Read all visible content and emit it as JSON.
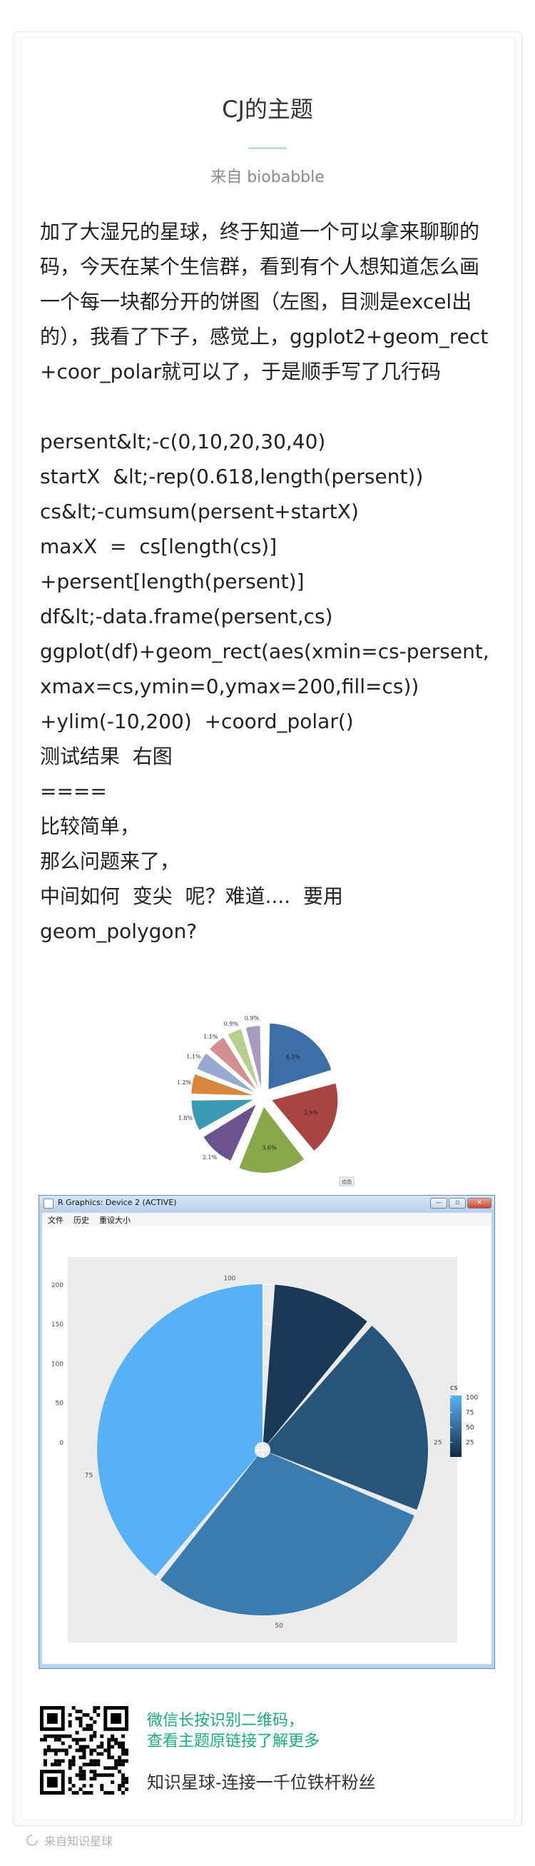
{
  "header": {
    "title": "CJ的主题",
    "subtitle": "来自 biobabble"
  },
  "article": {
    "lines": [
      "加了大湿兄的星球，终于知道一个可以拿来聊聊的码，今天在某个生信群，看到有个人想知道怎么画一个每一块都分开的饼图（左图，目测是excel出的），我看了下子，感觉上，ggplot2+geom_rect+coor_polar就可以了，于是顺手写了几行码",
      "",
      "persent&lt;-c(0,10,20,30,40)",
      "startX  &lt;-rep(0.618,length(persent))",
      "cs&lt;-cumsum(persent+startX)",
      "maxX  =  cs[length(cs)]",
      "+persent[length(persent)]",
      "df&lt;-data.frame(persent,cs)",
      "ggplot(df)+geom_rect(aes(xmin=cs-persent,xmax=cs,ymin=0,ymax=200,fill=cs))",
      "+ylim(-10,200)  +coord_polar()",
      "测试结果  右图",
      "====",
      "比较简单，",
      "那么问题来了，",
      "中间如何  变尖  呢？难道....  要用",
      "geom_polygon?"
    ]
  },
  "pie_figure": {
    "labels": [
      "4.3%",
      "3.9%",
      "3.6%",
      "2.1%",
      "1.8%",
      "1.2%",
      "1.1%",
      "1.1%",
      "0.9%",
      "0.9%"
    ],
    "colors": [
      "#3d6ea8",
      "#a94442",
      "#8aa84a",
      "#6b5390",
      "#3c9ab2",
      "#d9853b",
      "#95a9d2",
      "#d48f91",
      "#b7cf8e",
      "#a99ac0"
    ],
    "badge": "绘图"
  },
  "r_window": {
    "title": "R Graphics: Device 2 (ACTIVE)",
    "menu": [
      "文件",
      "历史",
      "重设大小"
    ],
    "controls": {
      "minimize": "—",
      "restore": "▫",
      "close": "✕"
    }
  },
  "chart_data": {
    "type": "bar",
    "coord": "polar",
    "title": "",
    "series": [
      {
        "xmin": 0.618,
        "xmax": 0.618,
        "ymin": 0,
        "ymax": 200,
        "cs": 0.618
      },
      {
        "xmin": 1.236,
        "xmax": 11.236,
        "ymin": 0,
        "ymax": 200,
        "cs": 11.236
      },
      {
        "xmin": 11.854,
        "xmax": 31.854,
        "ymin": 0,
        "ymax": 200,
        "cs": 31.854
      },
      {
        "xmin": 32.472,
        "xmax": 62.472,
        "ymin": 0,
        "ymax": 200,
        "cs": 62.472
      },
      {
        "xmin": 63.09,
        "xmax": 103.09,
        "ymin": 0,
        "ymax": 200,
        "cs": 103.09
      }
    ],
    "x_ticks": [
      "25",
      "50",
      "75",
      "100"
    ],
    "y_ticks": [
      "0",
      "50",
      "100",
      "150",
      "200"
    ],
    "ylim": [
      -10,
      200
    ],
    "legend": {
      "title": "cs",
      "labels": [
        "100",
        "75",
        "50",
        "25"
      ],
      "placement": "right"
    },
    "colors": {
      "low": "#132b43",
      "high": "#56b1f7",
      "panel": "#ebebeb"
    }
  },
  "footer": {
    "line1": "微信长按识别二维码，",
    "line2": "查看主题原链接了解更多",
    "tagline": "知识星球-连接一千位铁杆粉丝",
    "source": "来自知识星球"
  }
}
